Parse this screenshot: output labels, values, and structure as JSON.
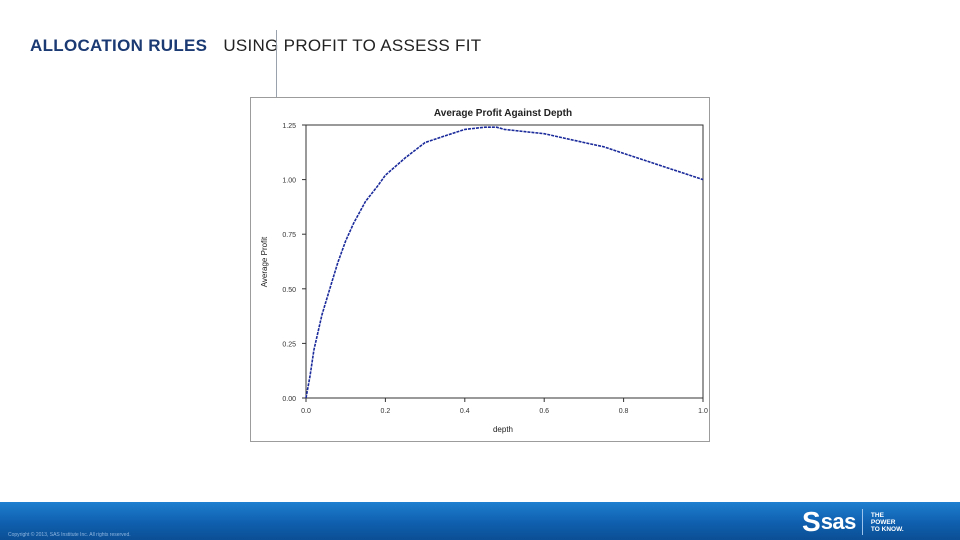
{
  "header": {
    "title_main": "ALLOCATION RULES",
    "title_sub": "USING PROFIT TO ASSESS FIT"
  },
  "footer": {
    "copyright": "Copyright © 2013, SAS Institute Inc. All rights reserved.",
    "logo_text": "sas",
    "tagline": [
      "THE",
      "POWER",
      "TO KNOW."
    ],
    "colors": {
      "bar_top": "#1f7fd0",
      "bar_bottom": "#0b4f95"
    }
  },
  "chart_data": {
    "type": "line",
    "title": "Average Profit Against Depth",
    "xlabel": "depth",
    "ylabel": "Average Profit",
    "xlim": [
      0,
      1.0
    ],
    "ylim": [
      0,
      1.25
    ],
    "x_ticks": [
      0.0,
      0.2,
      0.4,
      0.6,
      0.8,
      1.0
    ],
    "x_tick_labels": [
      "0.0",
      "0.2",
      "0.4",
      "0.6",
      "0.8",
      "1.0"
    ],
    "y_ticks": [
      0.0,
      0.25,
      0.5,
      0.75,
      1.0,
      1.25
    ],
    "y_tick_labels": [
      "0.00",
      "0.25",
      "0.50",
      "0.75",
      "1.00",
      "1.25"
    ],
    "grid": false,
    "line_color": "#1a2a9a",
    "series": [
      {
        "x": [
          0.0,
          0.01,
          0.02,
          0.04,
          0.06,
          0.08,
          0.1,
          0.12,
          0.15,
          0.18,
          0.2,
          0.25,
          0.3,
          0.35,
          0.4,
          0.45,
          0.48,
          0.5,
          0.55,
          0.6,
          0.65,
          0.7,
          0.75,
          0.8,
          0.85,
          0.9,
          0.95,
          1.0
        ],
        "y": [
          0.0,
          0.1,
          0.22,
          0.38,
          0.5,
          0.62,
          0.72,
          0.8,
          0.9,
          0.97,
          1.02,
          1.1,
          1.17,
          1.2,
          1.23,
          1.24,
          1.24,
          1.23,
          1.22,
          1.21,
          1.19,
          1.17,
          1.15,
          1.12,
          1.09,
          1.06,
          1.03,
          1.0
        ]
      }
    ]
  }
}
